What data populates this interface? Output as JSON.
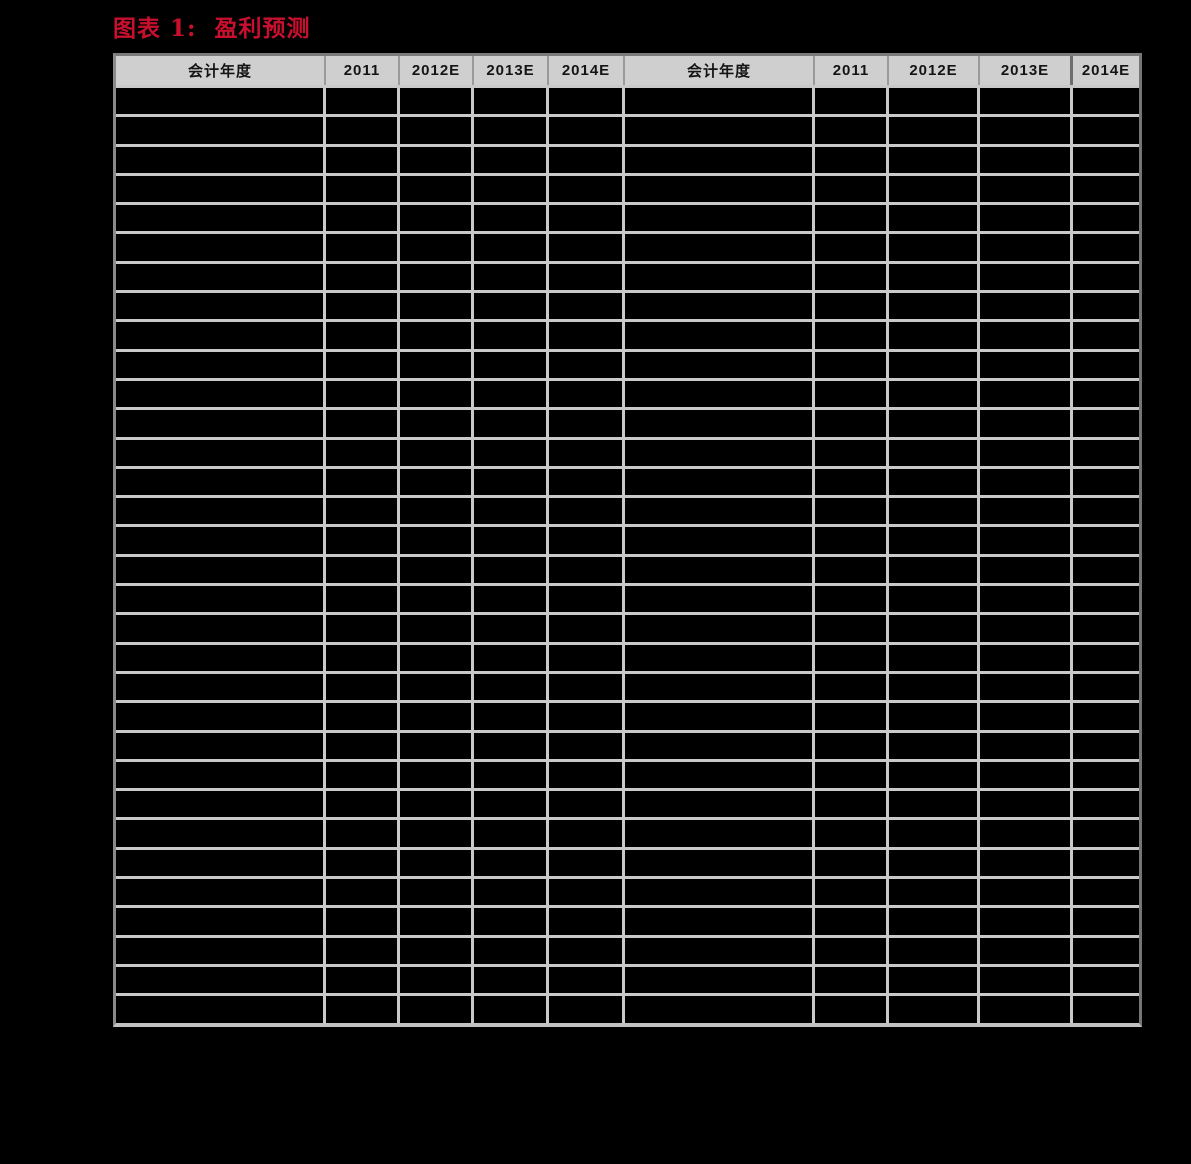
{
  "page": {
    "background_color": "#000000"
  },
  "figure": {
    "title": "图表 1:  盈利预测",
    "title_color": "#c8102e"
  },
  "table": {
    "columns": [
      "会计年度",
      "2011",
      "2012E",
      "2013E",
      "2014E",
      "会计年度",
      "2011",
      "2012E",
      "2013E",
      "2014E"
    ],
    "row_count": 32,
    "rows": [],
    "header_background": "#cfcfcf",
    "header_text_color": "#141414",
    "cell_background": "#000000",
    "grid_line_color": "#c9c9c9",
    "outer_border_color": "#7a7a7a"
  }
}
